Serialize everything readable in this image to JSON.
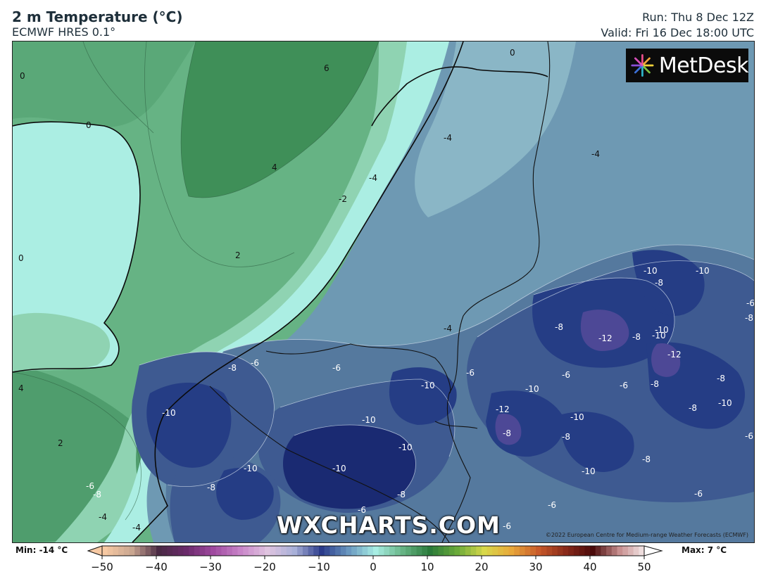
{
  "header": {
    "title": "2 m Temperature (°C)",
    "model": "ECMWF HRES 0.1°",
    "run": "Run: Thu 8 Dec 12Z",
    "valid": "Valid: Fri 16 Dec 18:00 UTC"
  },
  "logo": {
    "text": "MetDesk"
  },
  "watermark": "WXCHARTS.COM",
  "copyright": "©2022 European Centre for Medium-range Weather Forecasts (ECMWF)",
  "colorbar": {
    "min_label": "Min: -14 °C",
    "max_label": "Max: 7 °C",
    "range": [
      -50,
      50
    ],
    "ticks": [
      -50,
      -40,
      -30,
      -20,
      -10,
      0,
      10,
      20,
      30,
      40,
      50
    ]
  },
  "contour_labels": [
    "6",
    "0",
    "0",
    "4",
    "2",
    "0",
    "4",
    "2",
    "-2",
    "-4",
    "-4",
    "-4",
    "0",
    "-4",
    "-6",
    "-10",
    "-6",
    "-8",
    "-10",
    "-10",
    "-10",
    "-8",
    "-12",
    "-8",
    "-10",
    "-12",
    "-8",
    "-8",
    "-6",
    "-10",
    "-10",
    "-10",
    "-10",
    "-6",
    "-12",
    "-8",
    "-6",
    "-8",
    "-10",
    "-10",
    "-10",
    "-10",
    "-8",
    "-6",
    "-8",
    "-4",
    "-4",
    "-6",
    "-8",
    "-6",
    "-6",
    "-8",
    "-8",
    "-8",
    "-6",
    "-8",
    "-10",
    "-6",
    "-6",
    "-10"
  ],
  "palette": {
    "sea_warm": "#3f8f58",
    "sea_mid": "#66b384",
    "sea_cool": "#8fd3b2",
    "cold_coast": "#abeee3",
    "land_-2": "#8ab6c6",
    "land_-4": "#6e99b3",
    "land_-6": "#55799e",
    "land_-8": "#3e5a91",
    "land_-10": "#253d85",
    "land_-12": "#1a2a72",
    "land_-14": "#4d4896"
  }
}
